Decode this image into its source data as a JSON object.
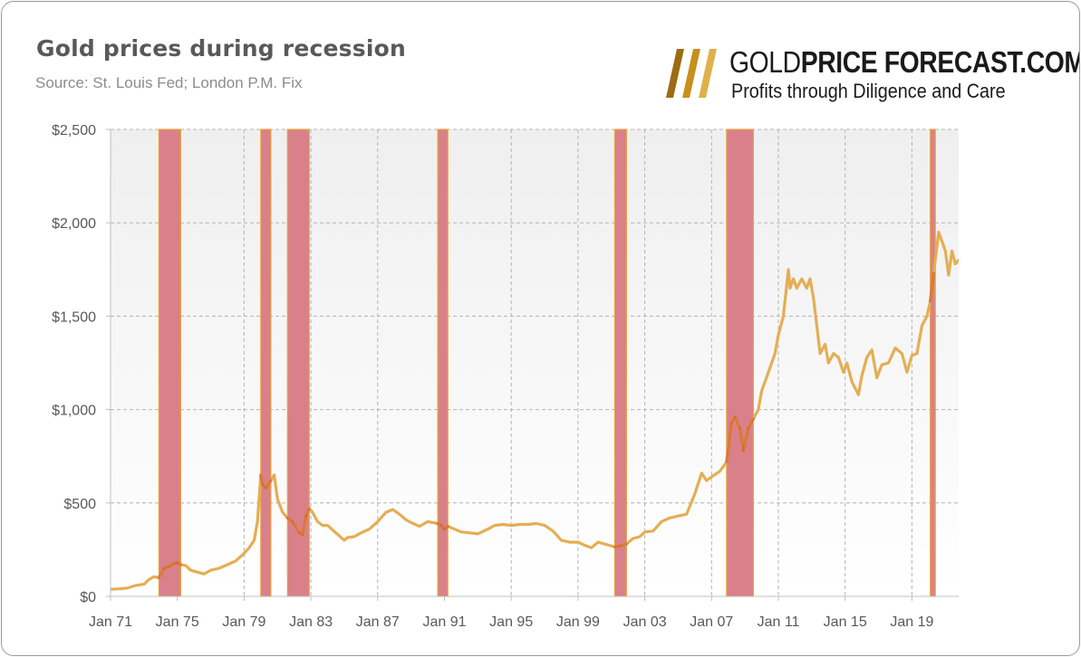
{
  "header": {
    "title": "Gold prices during recession",
    "subtitle": "Source: St. Louis Fed; London P.M. Fix"
  },
  "logo": {
    "brand_light": "GOLD",
    "brand_bold": "PRICE FORECAST.COM",
    "tagline": "Profits through Diligence and Care",
    "colors": [
      "#9c6b12",
      "#c8901c",
      "#e0b04a"
    ]
  },
  "colors": {
    "line": "#e4ae55",
    "line_in_recession": "#d9672e",
    "recession_fill": "#d9808a",
    "recession_border": "#e8a23a",
    "plot_bg_top": "#efefef",
    "plot_bg_bottom": "#ffffff",
    "grid": "#b4b4b4"
  },
  "chart_data": {
    "type": "line",
    "title": "Gold prices during recession",
    "subtitle": "Source: St. Louis Fed; London P.M. Fix",
    "xlabel": "",
    "ylabel": "",
    "xlim": [
      1971.0,
      2021.8
    ],
    "ylim": [
      0,
      2500
    ],
    "grid": true,
    "legend": "none",
    "y_ticks": [
      0,
      500,
      1000,
      1500,
      2000,
      2500
    ],
    "y_tick_labels": [
      "$0",
      "$500",
      "$1,000",
      "$1,500",
      "$2,000",
      "$2,500"
    ],
    "x_ticks": [
      1971,
      1975,
      1979,
      1983,
      1987,
      1991,
      1995,
      1999,
      2003,
      2007,
      2011,
      2015,
      2019
    ],
    "x_tick_labels": [
      "Jan 71",
      "Jan 75",
      "Jan 79",
      "Jan 83",
      "Jan 87",
      "Jan 91",
      "Jan 95",
      "Jan 99",
      "Jan 03",
      "Jan 07",
      "Jan 11",
      "Jan 15",
      "Jan 19"
    ],
    "recessions": [
      {
        "start": 1973.9,
        "end": 1975.2
      },
      {
        "start": 1980.0,
        "end": 1980.6
      },
      {
        "start": 1981.6,
        "end": 1982.9
      },
      {
        "start": 1990.6,
        "end": 1991.2
      },
      {
        "start": 2001.2,
        "end": 2001.9
      },
      {
        "start": 2007.9,
        "end": 2009.5
      },
      {
        "start": 2020.1,
        "end": 2020.4
      }
    ],
    "series": [
      {
        "x": [
          1971.0,
          1971.5,
          1972.0,
          1972.5,
          1973.0,
          1973.3,
          1973.6,
          1973.9,
          1974.2,
          1974.5,
          1974.8,
          1975.0,
          1975.2,
          1975.5,
          1975.8,
          1976.2,
          1976.6,
          1977.0,
          1977.5,
          1978.0,
          1978.5,
          1979.0,
          1979.3,
          1979.6,
          1979.8,
          1980.0,
          1980.1,
          1980.3,
          1980.6,
          1980.8,
          1981.0,
          1981.3,
          1981.6,
          1981.9,
          1982.3,
          1982.5,
          1982.7,
          1982.9,
          1983.1,
          1983.4,
          1983.7,
          1984.0,
          1984.5,
          1985.0,
          1985.2,
          1985.6,
          1986.0,
          1986.5,
          1987.0,
          1987.5,
          1987.9,
          1988.3,
          1988.7,
          1989.0,
          1989.5,
          1990.0,
          1990.6,
          1990.8,
          1991.0,
          1991.2,
          1991.6,
          1992.0,
          1992.5,
          1993.0,
          1993.6,
          1994.0,
          1994.5,
          1995.0,
          1995.5,
          1996.0,
          1996.5,
          1997.0,
          1997.5,
          1998.0,
          1998.5,
          1999.0,
          1999.5,
          1999.8,
          2000.2,
          2000.6,
          2001.0,
          2001.2,
          2001.5,
          2001.9,
          2002.3,
          2002.7,
          2003.0,
          2003.5,
          2004.0,
          2004.5,
          2005.0,
          2005.5,
          2006.0,
          2006.4,
          2006.7,
          2007.0,
          2007.5,
          2007.9,
          2008.2,
          2008.4,
          2008.7,
          2008.9,
          2009.2,
          2009.5,
          2009.8,
          2010.0,
          2010.4,
          2010.8,
          2011.0,
          2011.3,
          2011.6,
          2011.7,
          2011.9,
          2012.1,
          2012.4,
          2012.7,
          2012.9,
          2013.1,
          2013.3,
          2013.5,
          2013.8,
          2014.0,
          2014.3,
          2014.6,
          2014.9,
          2015.1,
          2015.4,
          2015.8,
          2016.0,
          2016.3,
          2016.6,
          2016.9,
          2017.2,
          2017.6,
          2018.0,
          2018.4,
          2018.7,
          2019.0,
          2019.3,
          2019.6,
          2019.9,
          2020.1,
          2020.3,
          2020.6,
          2020.8,
          2021.0,
          2021.2,
          2021.4,
          2021.6,
          2021.8
        ],
        "y": [
          38,
          40,
          44,
          58,
          65,
          90,
          105,
          100,
          150,
          160,
          175,
          180,
          170,
          165,
          140,
          130,
          120,
          140,
          150,
          170,
          190,
          230,
          260,
          300,
          400,
          650,
          600,
          580,
          620,
          650,
          520,
          450,
          420,
          400,
          340,
          330,
          430,
          470,
          450,
          400,
          380,
          380,
          340,
          300,
          315,
          320,
          340,
          360,
          400,
          450,
          465,
          440,
          410,
          395,
          375,
          400,
          390,
          380,
          360,
          375,
          360,
          345,
          340,
          335,
          360,
          380,
          385,
          380,
          385,
          385,
          390,
          380,
          350,
          300,
          290,
          290,
          270,
          260,
          290,
          280,
          270,
          265,
          270,
          280,
          310,
          320,
          345,
          350,
          400,
          420,
          430,
          440,
          550,
          660,
          620,
          640,
          670,
          720,
          930,
          960,
          900,
          780,
          900,
          950,
          1000,
          1100,
          1200,
          1300,
          1400,
          1500,
          1750,
          1650,
          1700,
          1650,
          1700,
          1650,
          1700,
          1600,
          1450,
          1300,
          1350,
          1250,
          1300,
          1280,
          1200,
          1250,
          1150,
          1080,
          1180,
          1280,
          1320,
          1170,
          1240,
          1250,
          1330,
          1300,
          1200,
          1290,
          1300,
          1450,
          1500,
          1580,
          1730,
          1950,
          1900,
          1850,
          1720,
          1850,
          1780,
          1800
        ]
      }
    ]
  }
}
